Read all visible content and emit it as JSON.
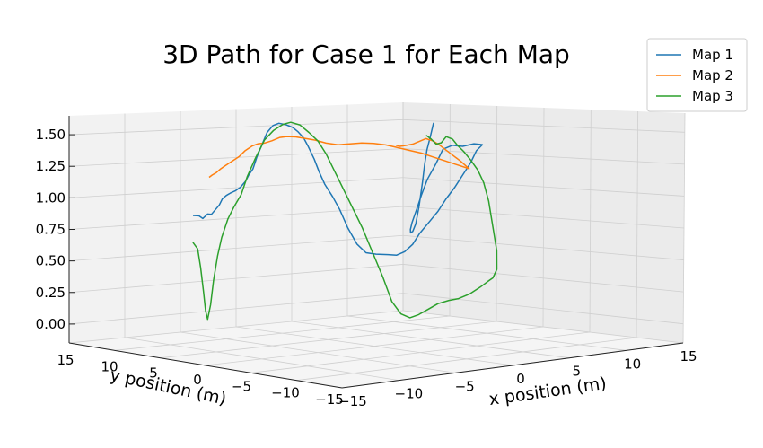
{
  "chart_data": {
    "type": "line",
    "projection": "3d",
    "title": "3D Path for Case 1 for Each Map",
    "xlabel": "x position (m)",
    "ylabel": "y position (m)",
    "zlabel": "",
    "xlim": [
      -15,
      15
    ],
    "ylim": [
      -15,
      15
    ],
    "zlim": [
      -0.15,
      1.65
    ],
    "x_ticks": [
      "−15",
      "−10",
      "−5",
      "0",
      "5",
      "10",
      "15"
    ],
    "y_ticks": [
      "15",
      "10",
      "5",
      "0",
      "−5",
      "−10",
      "−15"
    ],
    "z_ticks": [
      "0.00",
      "0.25",
      "0.50",
      "0.75",
      "1.00",
      "1.25",
      "1.50"
    ],
    "grid": true,
    "legend_position": "top-right",
    "series": [
      {
        "name": "Map 1",
        "color": "#1f77b4",
        "points": [
          [
            -14.6,
            4.2,
            0.8
          ],
          [
            -14.2,
            4.0,
            0.8
          ],
          [
            -13.9,
            3.9,
            0.78
          ],
          [
            -13.5,
            3.8,
            0.82
          ],
          [
            -13.2,
            3.7,
            0.82
          ],
          [
            -13.0,
            3.6,
            0.85
          ],
          [
            -12.7,
            3.4,
            0.9
          ],
          [
            -12.5,
            3.3,
            0.95
          ],
          [
            -12.2,
            3.2,
            0.98
          ],
          [
            -12.0,
            3.0,
            1.0
          ],
          [
            -11.7,
            2.8,
            1.02
          ],
          [
            -11.5,
            2.5,
            1.05
          ],
          [
            -11.3,
            2.2,
            1.1
          ],
          [
            -11.2,
            2.0,
            1.15
          ],
          [
            -11.0,
            1.8,
            1.2
          ],
          [
            -10.8,
            1.6,
            1.3
          ],
          [
            -10.5,
            1.4,
            1.4
          ],
          [
            -10.2,
            1.2,
            1.5
          ],
          [
            -9.8,
            1.0,
            1.56
          ],
          [
            -9.4,
            0.8,
            1.58
          ],
          [
            -9.0,
            0.5,
            1.57
          ],
          [
            -8.5,
            0.3,
            1.55
          ],
          [
            -8.1,
            0.2,
            1.52
          ],
          [
            -7.7,
            0.0,
            1.47
          ],
          [
            -7.3,
            -0.1,
            1.4
          ],
          [
            -6.9,
            -0.3,
            1.3
          ],
          [
            -6.5,
            -0.4,
            1.2
          ],
          [
            -6.0,
            -0.5,
            1.1
          ],
          [
            -5.5,
            -0.8,
            1.0
          ],
          [
            -5.0,
            -1.0,
            0.9
          ],
          [
            -4.6,
            -1.4,
            0.75
          ],
          [
            -4.1,
            -1.8,
            0.62
          ],
          [
            -3.6,
            -2.2,
            0.55
          ],
          [
            -3.0,
            -2.6,
            0.54
          ],
          [
            -2.2,
            -3.0,
            0.54
          ],
          [
            -1.5,
            -3.2,
            0.54
          ],
          [
            -1.0,
            -3.5,
            0.57
          ],
          [
            -0.5,
            -3.8,
            0.63
          ],
          [
            0.0,
            -4.0,
            0.72
          ],
          [
            0.5,
            -4.5,
            0.82
          ],
          [
            1.0,
            -4.8,
            0.9
          ],
          [
            1.6,
            -5.0,
            1.0
          ],
          [
            2.2,
            -5.3,
            1.1
          ],
          [
            2.8,
            -5.5,
            1.2
          ],
          [
            3.4,
            -5.7,
            1.3
          ],
          [
            3.9,
            -5.8,
            1.4
          ],
          [
            4.3,
            -6.0,
            1.45
          ],
          [
            4.0,
            -5.5,
            1.46
          ],
          [
            3.4,
            -5.0,
            1.44
          ],
          [
            2.9,
            -4.5,
            1.45
          ],
          [
            2.5,
            -4.0,
            1.42
          ],
          [
            2.2,
            -3.6,
            1.3
          ],
          [
            1.8,
            -3.2,
            1.18
          ],
          [
            1.4,
            -3.0,
            1.05
          ],
          [
            1.2,
            -2.8,
            0.95
          ],
          [
            1.0,
            -2.5,
            0.83
          ],
          [
            1.2,
            -2.2,
            0.78
          ],
          [
            1.7,
            -1.8,
            0.76
          ],
          [
            2.3,
            -1.5,
            0.78
          ],
          [
            3.0,
            -1.2,
            0.85
          ],
          [
            3.6,
            -1.0,
            1.0
          ],
          [
            4.2,
            -0.8,
            1.2
          ],
          [
            4.8,
            -0.5,
            1.35
          ],
          [
            5.4,
            -0.2,
            1.47
          ],
          [
            6.0,
            0.0,
            1.58
          ],
          [
            6.6,
            0.2,
            1.7
          ]
        ]
      },
      {
        "name": "Map 2",
        "color": "#ff7f0e",
        "points": [
          [
            -14.9,
            2.5,
            1.1
          ],
          [
            -14.7,
            2.4,
            1.12
          ],
          [
            -14.5,
            2.2,
            1.14
          ],
          [
            -14.3,
            2.0,
            1.17
          ],
          [
            -14.0,
            1.8,
            1.2
          ],
          [
            -13.6,
            1.5,
            1.24
          ],
          [
            -13.2,
            1.2,
            1.28
          ],
          [
            -12.8,
            1.0,
            1.33
          ],
          [
            -12.4,
            0.7,
            1.37
          ],
          [
            -12.0,
            0.5,
            1.39
          ],
          [
            -11.5,
            0.3,
            1.4
          ],
          [
            -11.0,
            0.1,
            1.42
          ],
          [
            -10.5,
            -0.2,
            1.45
          ],
          [
            -10.0,
            -0.4,
            1.46
          ],
          [
            -9.4,
            -0.7,
            1.46
          ],
          [
            -8.7,
            -1.0,
            1.45
          ],
          [
            -8.0,
            -1.3,
            1.44
          ],
          [
            -7.2,
            -1.6,
            1.42
          ],
          [
            -6.4,
            -2.0,
            1.41
          ],
          [
            -5.6,
            -2.4,
            1.42
          ],
          [
            -4.8,
            -2.8,
            1.43
          ],
          [
            -4.0,
            -3.2,
            1.43
          ],
          [
            -3.2,
            -3.6,
            1.42
          ],
          [
            -2.4,
            -4.0,
            1.4
          ],
          [
            -1.6,
            -4.4,
            1.38
          ],
          [
            -0.8,
            -4.8,
            1.36
          ],
          [
            0.0,
            -5.2,
            1.33
          ],
          [
            0.8,
            -5.6,
            1.3
          ],
          [
            1.6,
            -6.0,
            1.27
          ],
          [
            2.4,
            -6.4,
            1.24
          ],
          [
            2.0,
            -6.0,
            1.3
          ],
          [
            1.4,
            -5.5,
            1.37
          ],
          [
            1.0,
            -5.0,
            1.43
          ],
          [
            0.7,
            -4.6,
            1.47
          ],
          [
            0.4,
            -4.2,
            1.49
          ],
          [
            0.2,
            -3.8,
            1.47
          ],
          [
            -0.1,
            -3.5,
            1.45
          ],
          [
            -0.4,
            -3.2,
            1.44
          ],
          [
            -0.8,
            -2.9,
            1.43
          ],
          [
            -1.0,
            -2.7,
            1.44
          ]
        ]
      },
      {
        "name": "Map 3",
        "color": "#2ca02c",
        "points": [
          [
            -13.4,
            5.2,
            0.6
          ],
          [
            -13.0,
            5.1,
            0.55
          ],
          [
            -12.8,
            5.0,
            0.4
          ],
          [
            -12.6,
            4.9,
            0.2
          ],
          [
            -12.5,
            4.8,
            0.05
          ],
          [
            -12.4,
            4.7,
            -0.02
          ],
          [
            -12.2,
            4.6,
            0.1
          ],
          [
            -12.0,
            4.5,
            0.3
          ],
          [
            -11.8,
            4.3,
            0.5
          ],
          [
            -11.6,
            4.1,
            0.65
          ],
          [
            -11.3,
            3.8,
            0.8
          ],
          [
            -11.0,
            3.5,
            0.9
          ],
          [
            -10.7,
            3.1,
            1.0
          ],
          [
            -10.4,
            2.8,
            1.15
          ],
          [
            -10.0,
            2.4,
            1.3
          ],
          [
            -9.5,
            2.0,
            1.45
          ],
          [
            -9.0,
            1.6,
            1.53
          ],
          [
            -8.5,
            1.2,
            1.58
          ],
          [
            -8.0,
            0.9,
            1.6
          ],
          [
            -7.5,
            0.5,
            1.58
          ],
          [
            -7.0,
            0.1,
            1.52
          ],
          [
            -6.5,
            -0.3,
            1.45
          ],
          [
            -6.0,
            -0.6,
            1.35
          ],
          [
            -5.5,
            -1.0,
            1.2
          ],
          [
            -5.0,
            -1.4,
            1.05
          ],
          [
            -4.5,
            -1.8,
            0.9
          ],
          [
            -4.0,
            -2.2,
            0.75
          ],
          [
            -3.5,
            -2.7,
            0.55
          ],
          [
            -3.0,
            -3.2,
            0.35
          ],
          [
            -2.5,
            -3.6,
            0.15
          ],
          [
            -2.0,
            -4.0,
            0.05
          ],
          [
            -1.5,
            -4.4,
            0.02
          ],
          [
            -0.8,
            -4.6,
            0.05
          ],
          [
            0.0,
            -4.8,
            0.1
          ],
          [
            0.8,
            -5.0,
            0.15
          ],
          [
            1.6,
            -5.3,
            0.18
          ],
          [
            2.4,
            -5.5,
            0.2
          ],
          [
            3.2,
            -5.8,
            0.24
          ],
          [
            4.0,
            -6.1,
            0.3
          ],
          [
            4.6,
            -6.3,
            0.35
          ],
          [
            5.0,
            -6.4,
            0.38
          ],
          [
            5.3,
            -6.5,
            0.45
          ],
          [
            5.4,
            -6.4,
            0.6
          ],
          [
            5.2,
            -6.2,
            0.8
          ],
          [
            5.0,
            -6.0,
            1.0
          ],
          [
            4.7,
            -5.8,
            1.15
          ],
          [
            4.3,
            -5.6,
            1.25
          ],
          [
            3.9,
            -5.3,
            1.33
          ],
          [
            3.5,
            -5.0,
            1.4
          ],
          [
            3.2,
            -4.7,
            1.45
          ],
          [
            2.9,
            -4.5,
            1.5
          ],
          [
            2.6,
            -4.2,
            1.52
          ],
          [
            2.3,
            -4.0,
            1.47
          ],
          [
            2.0,
            -3.8,
            1.46
          ],
          [
            1.7,
            -3.6,
            1.5
          ],
          [
            1.4,
            -3.4,
            1.53
          ]
        ]
      }
    ]
  }
}
